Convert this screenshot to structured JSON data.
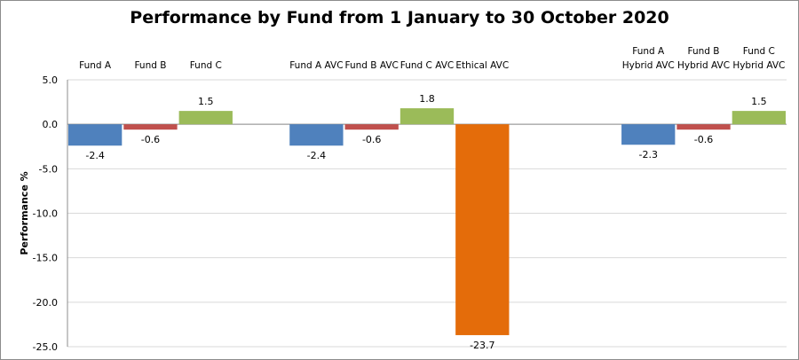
{
  "chart_data": {
    "type": "bar",
    "title": "Performance by Fund from 1 January to 30 October 2020",
    "ylabel": "Performance %",
    "xlabel": "",
    "ylim": [
      -25,
      5
    ],
    "yticks": [
      "5.0",
      "0.0",
      "-5.0",
      "-10.0",
      "-15.0",
      "-20.0",
      "-25.0"
    ],
    "grid": true,
    "legend": "none",
    "categories": [
      [
        "Fund A"
      ],
      [
        "Fund B"
      ],
      [
        "Fund C"
      ],
      [
        "Fund A AVC"
      ],
      [
        "Fund B AVC"
      ],
      [
        "Fund C AVC"
      ],
      [
        "Ethical AVC"
      ],
      [
        "Fund A",
        "Hybrid AVC"
      ],
      [
        "Fund B",
        "Hybrid AVC"
      ],
      [
        "Fund C",
        "Hybrid AVC"
      ]
    ],
    "values": [
      -2.4,
      -0.6,
      1.5,
      -2.4,
      -0.6,
      1.8,
      -23.7,
      -2.3,
      -0.6,
      1.5
    ],
    "value_labels": [
      "-2.4",
      "-0.6",
      "1.5",
      "-2.4",
      "-0.6",
      "1.8",
      "-23.7",
      "-2.3",
      "-0.6",
      "1.5"
    ],
    "colors": [
      "#4f81bd",
      "#c0504d",
      "#9bbb59",
      "#4f81bd",
      "#c0504d",
      "#9bbb59",
      "#e46c0a",
      "#4f81bd",
      "#c0504d",
      "#9bbb59"
    ],
    "gridline_color": "#d9d9d9",
    "axis_color": "#8c8c8c"
  }
}
